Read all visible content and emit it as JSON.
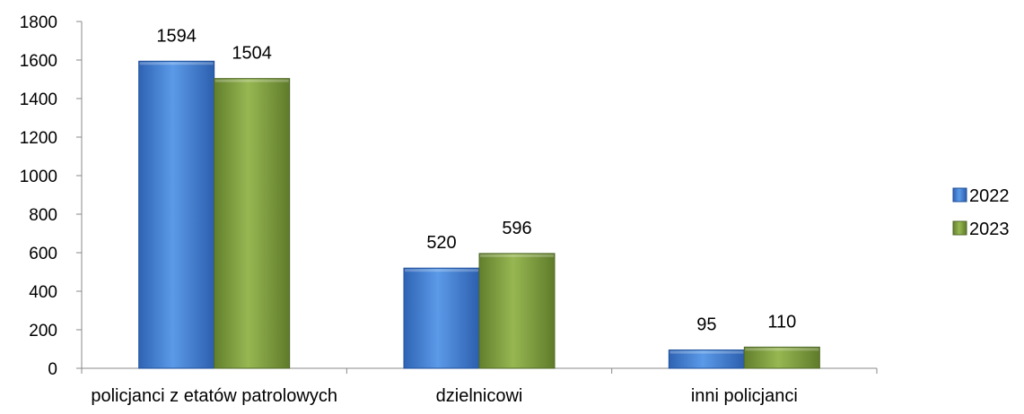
{
  "chart_data": {
    "type": "bar",
    "categories": [
      "policjanci z etatów patrolowych",
      "dzielnicowi",
      "inni policjanci"
    ],
    "series": [
      {
        "name": "2022",
        "values": [
          1594,
          520,
          95
        ],
        "color": "#3f7fd6"
      },
      {
        "name": "2023",
        "values": [
          1504,
          596,
          110
        ],
        "color": "#7f9f3f"
      }
    ],
    "y_ticks": [
      0,
      200,
      400,
      600,
      800,
      1000,
      1200,
      1400,
      1600,
      1800
    ],
    "ylim": [
      0,
      1800
    ],
    "grid": false,
    "legend_position": "right",
    "data_labels": true,
    "title": "",
    "xlabel": "",
    "ylabel": ""
  }
}
